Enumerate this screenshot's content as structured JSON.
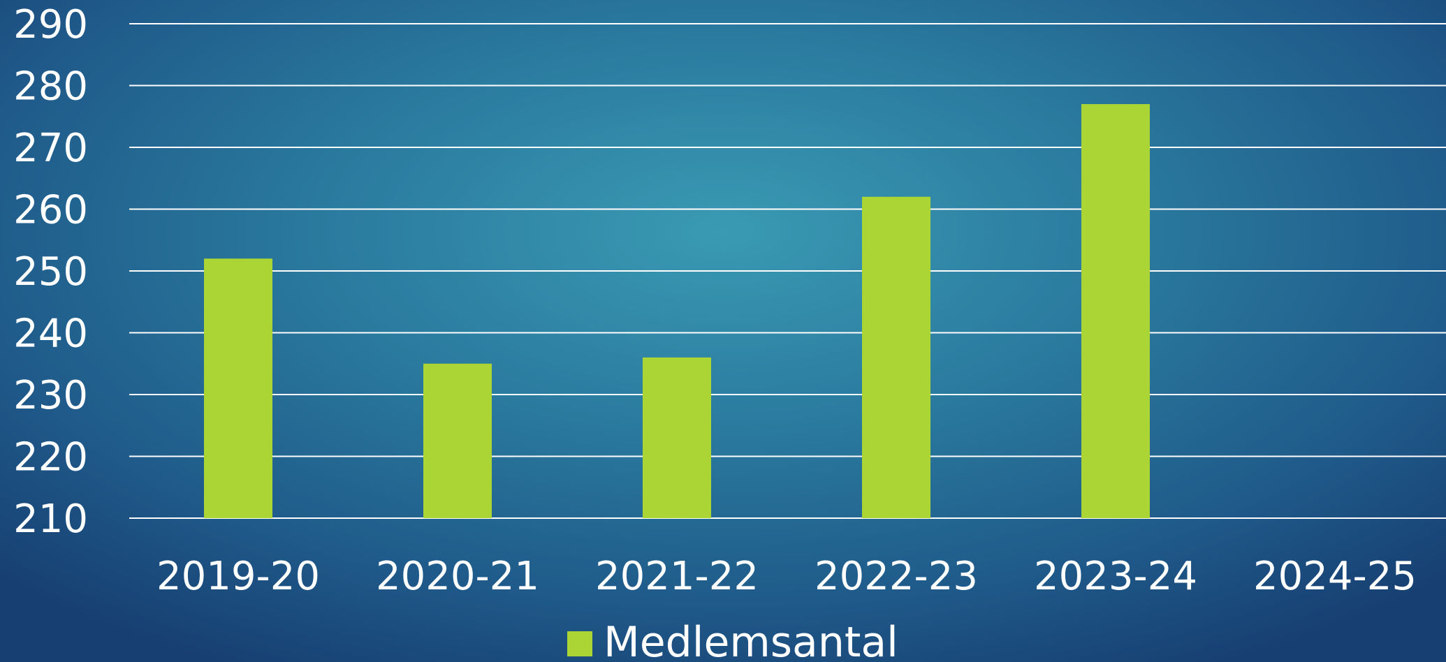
{
  "chart_data": {
    "type": "bar",
    "categories": [
      "2019-20",
      "2020-21",
      "2021-22",
      "2022-23",
      "2023-24",
      "2024-25"
    ],
    "series": [
      {
        "name": "Medlemsantal",
        "values": [
          252,
          235,
          236,
          262,
          277,
          null
        ]
      }
    ],
    "ylim": [
      210,
      290
    ],
    "yticks": [
      210,
      220,
      230,
      240,
      250,
      260,
      270,
      280,
      290
    ],
    "grid": true,
    "legend": "bottom-center",
    "colors": {
      "bar": "#aad535",
      "text": "#ffffff",
      "grid": "#ffffff"
    }
  }
}
